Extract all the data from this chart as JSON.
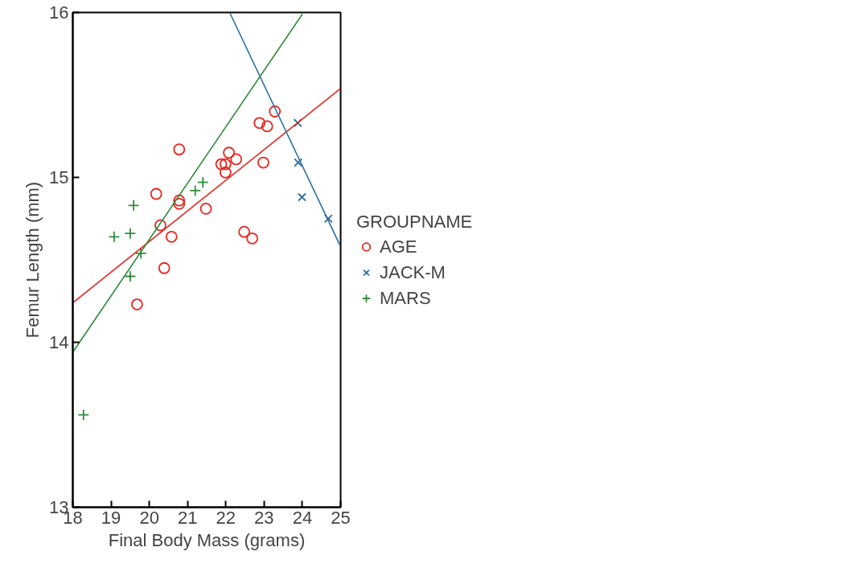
{
  "chart_data": {
    "type": "scatter",
    "xlabel": "Final Body Mass (grams)",
    "ylabel": "Femur Length (mm)",
    "legend_title": "GROUPNAME",
    "legend": "right",
    "grid": false,
    "xlim": [
      18,
      25
    ],
    "ylim": [
      13,
      16
    ],
    "xticks": [
      18,
      19,
      20,
      21,
      22,
      23,
      24,
      25
    ],
    "yticks": [
      13,
      14,
      15,
      16
    ],
    "series": [
      {
        "name": "AGE",
        "color": "#e8251f",
        "marker": "circle",
        "x": [
          20.78,
          20.18,
          20.78,
          20.78,
          20.29,
          21.48,
          20.58,
          20.39,
          19.68,
          23.28,
          22.88,
          23.08,
          22.08,
          22.27,
          21.88,
          21.99,
          21.99,
          22.98,
          22.48,
          22.69
        ],
        "values": [
          15.17,
          14.9,
          14.86,
          14.84,
          14.71,
          14.81,
          14.64,
          14.45,
          14.23,
          15.4,
          15.33,
          15.31,
          15.15,
          15.11,
          15.08,
          15.08,
          15.03,
          15.09,
          14.67,
          14.63
        ]
      },
      {
        "name": "JACK-M",
        "color": "#2a6e9e",
        "marker": "cross",
        "x": [
          23.88,
          23.89,
          23.99,
          24.68
        ],
        "values": [
          15.33,
          15.09,
          14.88,
          14.75
        ]
      },
      {
        "name": "MARS",
        "color": "#2e8b3a",
        "marker": "plus",
        "x": [
          19.59,
          19.08,
          19.5,
          19.78,
          19.5,
          21.2,
          21.4,
          18.28
        ],
        "values": [
          14.83,
          14.64,
          14.66,
          14.54,
          14.4,
          14.92,
          14.97,
          13.56
        ]
      },
      {
        "type": "line",
        "color": "#e8251f",
        "x": [
          18,
          25
        ],
        "values": [
          14.24,
          15.54
        ]
      },
      {
        "type": "line",
        "color": "#2e8b3a",
        "x": [
          18,
          24
        ],
        "values": [
          13.94,
          15.99
        ]
      },
      {
        "type": "line",
        "color": "#2a6e9e",
        "x": [
          22.1,
          25
        ],
        "values": [
          16,
          14.58
        ]
      }
    ]
  }
}
